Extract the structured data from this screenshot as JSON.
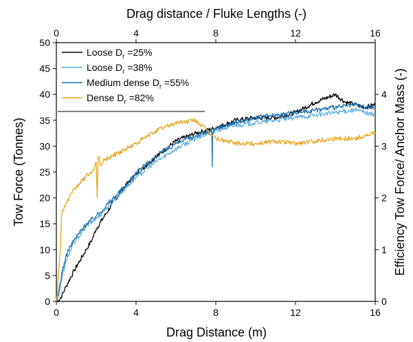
{
  "chart_data": {
    "type": "line",
    "xlabel": "Drag Distance (m)",
    "x2label": "Drag distance / Fluke Lengths (-)",
    "ylabel": "Tow Force (Tonnes)",
    "y2label": "Efficiency Tow Force/ Anchor Mass (-)",
    "xlim": [
      0,
      16
    ],
    "ylim": [
      0,
      50
    ],
    "x2lim": [
      0,
      16
    ],
    "y2lim": [
      0,
      5
    ],
    "xticks": [
      0,
      4,
      8,
      12,
      16
    ],
    "yticks": [
      0,
      5,
      10,
      15,
      20,
      25,
      30,
      35,
      40,
      45,
      50
    ],
    "x2ticks": [
      0,
      4,
      8,
      12,
      16
    ],
    "y2ticks": [
      0,
      1,
      2,
      3,
      4
    ],
    "legend_position": "top-left",
    "series": [
      {
        "name": "Loose Dr =25%",
        "legend_main": "Loose D",
        "legend_sub": "r",
        "legend_tail": " =25%",
        "color": "#000000",
        "x": [
          0,
          0.2,
          0.5,
          0.9,
          1.2,
          1.5,
          1.8,
          2.0,
          2.5,
          3.0,
          3.5,
          4.0,
          5.0,
          6.0,
          7.0,
          8.0,
          9.0,
          10.0,
          11.0,
          12.0,
          13.0,
          14.0,
          14.5,
          15.0,
          15.5,
          16.0
        ],
        "y": [
          0,
          0.5,
          3,
          6,
          8,
          10,
          12,
          14,
          17,
          20,
          22.5,
          24.5,
          28,
          31,
          32.5,
          33.5,
          35,
          35.5,
          35.5,
          36.5,
          38.5,
          40,
          38.5,
          38,
          37.5,
          38
        ]
      },
      {
        "name": "Loose Dr =38%",
        "legend_main": "Loose D",
        "legend_sub": "r",
        "legend_tail": " =38%",
        "color": "#5aaee0",
        "x": [
          0,
          0.1,
          0.3,
          0.6,
          1.0,
          1.5,
          2.0,
          2.5,
          3.0,
          3.5,
          4.0,
          5.0,
          6.0,
          7.0,
          8.0,
          9.0,
          10.0,
          11.0,
          12.0,
          13.0,
          14.0,
          15.0,
          15.5,
          16.0
        ],
        "y": [
          0,
          1,
          5,
          9,
          12,
          14.5,
          16,
          18,
          20,
          22,
          24,
          27,
          29.5,
          31.5,
          33,
          34,
          34.5,
          35,
          35.5,
          36,
          36.5,
          37,
          36.5,
          36
        ]
      },
      {
        "name": "Medium dense Dr =55%",
        "legend_main": "Medium dense D",
        "legend_sub": "r",
        "legend_tail": " =55%",
        "color": "#1b6fb0",
        "x": [
          0,
          0.1,
          0.3,
          0.6,
          1.0,
          1.5,
          2.0,
          2.5,
          3.0,
          3.5,
          4.0,
          5.0,
          6.0,
          7.0,
          7.8,
          7.82,
          7.84,
          8.0,
          9.0,
          10.0,
          11.0,
          12.0,
          13.0,
          14.0,
          15.0,
          15.5,
          16.0
        ],
        "y": [
          0,
          1.5,
          6,
          10,
          12.5,
          15,
          16.5,
          18.5,
          20.5,
          22.5,
          25,
          28,
          30.5,
          32,
          33,
          26,
          32.5,
          33.5,
          34.5,
          35.5,
          36,
          36.5,
          37,
          37.5,
          38,
          37.5,
          37.5
        ]
      },
      {
        "name": "Dense Dr =82%",
        "legend_main": "Dense D",
        "legend_sub": "r",
        "legend_tail": " =82%",
        "color": "#e8a21a",
        "x": [
          0,
          0.2,
          0.25,
          0.3,
          0.5,
          0.8,
          1.2,
          1.6,
          1.9,
          2.0,
          2.05,
          2.1,
          2.2,
          2.5,
          3.0,
          3.5,
          4.0,
          5.0,
          6.0,
          7.0,
          8.0,
          9.0,
          10.0,
          11.0,
          12.0,
          13.0,
          14.0,
          15.0,
          16.0
        ],
        "y": [
          0,
          10,
          16,
          17.5,
          19,
          21,
          23,
          24.5,
          25.5,
          27,
          20,
          28,
          26.5,
          27.5,
          28.5,
          29.5,
          30.5,
          33,
          34.5,
          35,
          31.5,
          30.5,
          30.5,
          31,
          30.5,
          31,
          31.5,
          31.5,
          32.5
        ]
      }
    ]
  }
}
